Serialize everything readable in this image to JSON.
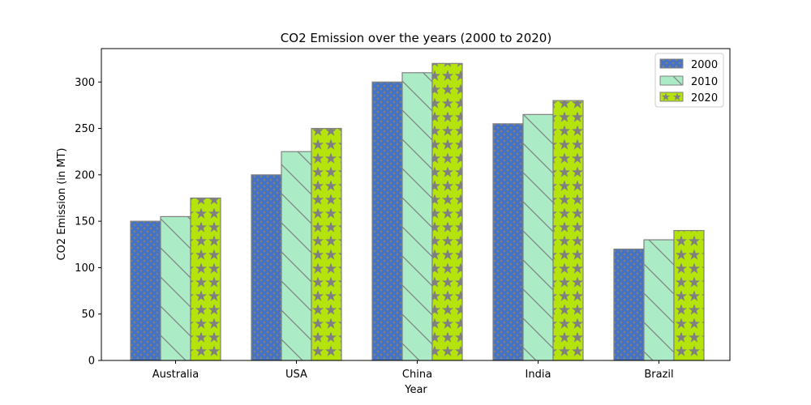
{
  "chart_data": {
    "type": "bar",
    "title": "CO2 Emission over the years (2000 to 2020)",
    "xlabel": "Year",
    "ylabel": "CO2 Emission (in MT)",
    "categories": [
      "Australia",
      "USA",
      "China",
      "India",
      "Brazil"
    ],
    "series": [
      {
        "name": "2000",
        "values": [
          150,
          200,
          300,
          255,
          120
        ],
        "color": "#4472c4",
        "hatch": "dots"
      },
      {
        "name": "2010",
        "values": [
          155,
          225,
          310,
          265,
          130
        ],
        "color": "#abebc6",
        "hatch": "diagonal"
      },
      {
        "name": "2020",
        "values": [
          175,
          250,
          320,
          280,
          140
        ],
        "color": "#b4e40b",
        "hatch": "stars"
      }
    ],
    "ylim": [
      0,
      336
    ],
    "yticks": [
      0,
      50,
      100,
      150,
      200,
      250,
      300
    ],
    "edge_color": "#808080",
    "legend_position": "top-right",
    "grid": false
  }
}
